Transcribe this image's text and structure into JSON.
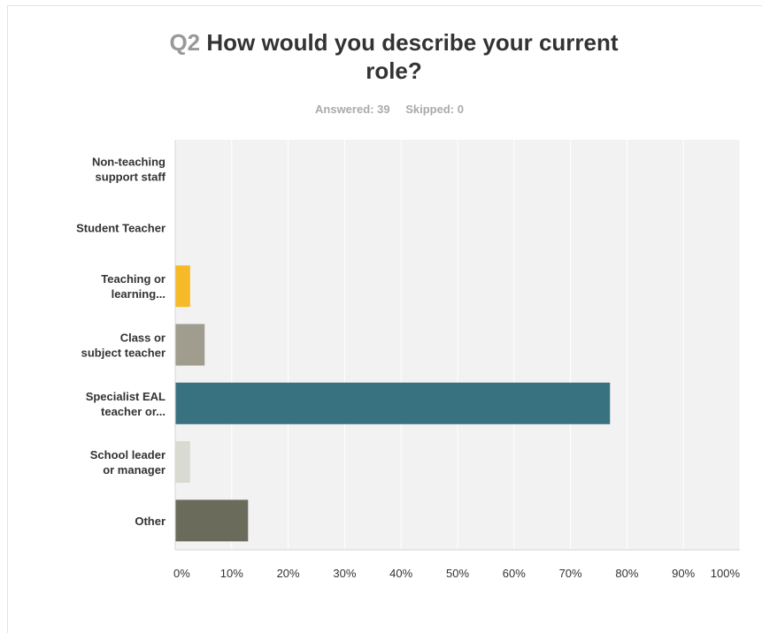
{
  "question": {
    "number": "Q2",
    "text": "How would you describe your current role?",
    "title_lines": [
      "How would you describe your current",
      "role?"
    ]
  },
  "meta": {
    "answered_label": "Answered:",
    "answered": "39",
    "skipped_label": "Skipped:",
    "skipped": "0"
  },
  "chart_data": {
    "type": "bar",
    "orientation": "horizontal",
    "categories": [
      "Non-teaching support staff",
      "Student Teacher",
      "Teaching or learning...",
      "Class or subject teacher",
      "Specialist EAL teacher or...",
      "School leader or manager",
      "Other"
    ],
    "category_label_lines": [
      [
        "Non-teaching",
        "support staff"
      ],
      [
        "Student Teacher"
      ],
      [
        "Teaching or",
        "learning..."
      ],
      [
        "Class or",
        "subject teacher"
      ],
      [
        "Specialist EAL",
        "teacher or..."
      ],
      [
        "School leader",
        "or manager"
      ],
      [
        "Other"
      ]
    ],
    "values": [
      0,
      0,
      2.56,
      5.13,
      76.92,
      2.56,
      12.82
    ],
    "colors": [
      "#f7c12d",
      "#f7c12d",
      "#f6b928",
      "#a09d8f",
      "#38717f",
      "#d9dad2",
      "#6b6b5b"
    ],
    "xlim": [
      0,
      100
    ],
    "x_ticks": [
      "0%",
      "10%",
      "20%",
      "30%",
      "40%",
      "50%",
      "60%",
      "70%",
      "80%",
      "90%",
      "100%"
    ],
    "grid": true,
    "plot_background": "#f2f2f2",
    "grid_color": "#ffffff"
  }
}
